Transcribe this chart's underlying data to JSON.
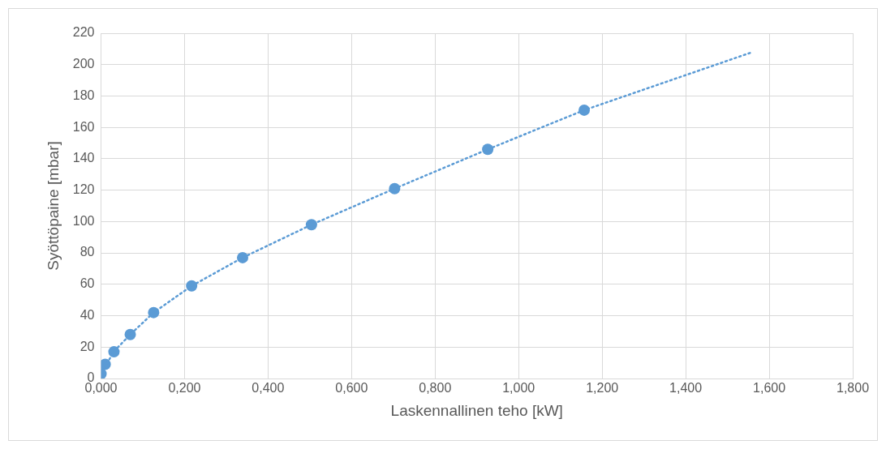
{
  "chart_data": {
    "type": "scatter",
    "xlabel": "Laskennallinen teho [kW]",
    "ylabel": "Syöttöpaine [mbar]",
    "xlim": [
      0,
      1.8
    ],
    "xticks": [
      {
        "value": 0,
        "label": "0,000"
      },
      {
        "value": 0.2,
        "label": "0,200"
      },
      {
        "value": 0.4,
        "label": "0,400"
      },
      {
        "value": 0.6,
        "label": "0,600"
      },
      {
        "value": 0.8,
        "label": "0,800"
      },
      {
        "value": 1.0,
        "label": "1,000"
      },
      {
        "value": 1.2,
        "label": "1,200"
      },
      {
        "value": 1.4,
        "label": "1,400"
      },
      {
        "value": 1.6,
        "label": "1,600"
      },
      {
        "value": 1.8,
        "label": "1,800"
      }
    ],
    "ylim": [
      0,
      220
    ],
    "yticks": [
      0,
      20,
      40,
      60,
      80,
      100,
      120,
      140,
      160,
      180,
      200,
      220
    ],
    "grid": true,
    "legend": false,
    "series": [
      {
        "type": "line",
        "color": "#5b9bd5",
        "marker": "none",
        "line_style": "dotted",
        "x": [
          0.003,
          0.03,
          0.07,
          0.126,
          0.217,
          0.339,
          0.504,
          0.703,
          0.926,
          1.157,
          1.56
        ],
        "values": [
          4,
          17,
          28,
          42,
          59,
          77,
          98,
          121,
          146,
          171,
          208
        ]
      },
      {
        "type": "scatter",
        "color": "#5b9bd5",
        "marker": "circle",
        "x": [
          0.0,
          0.01,
          0.031,
          0.07,
          0.126,
          0.217,
          0.339,
          0.504,
          0.703,
          0.926,
          1.157
        ],
        "values": [
          3,
          9,
          17,
          28,
          42,
          59,
          77,
          98,
          121,
          146,
          171
        ]
      }
    ]
  }
}
